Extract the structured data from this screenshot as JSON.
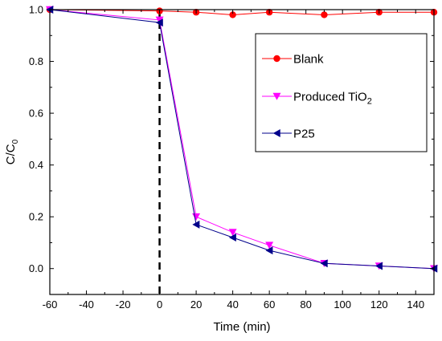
{
  "chart_data": {
    "type": "line",
    "xlabel": "Time (min)",
    "ylabel": {
      "main": "C/C",
      "sub": "0"
    },
    "xlim": [
      -60,
      150
    ],
    "ylim": [
      -0.1,
      1.0
    ],
    "xticks": [
      -60,
      -40,
      -20,
      0,
      20,
      40,
      60,
      80,
      100,
      120,
      140
    ],
    "yticks": [
      0.0,
      0.2,
      0.4,
      0.6,
      0.8,
      1.0
    ],
    "ytick_labels": [
      "0.0",
      "0.2",
      "0.4",
      "0.6",
      "0.8",
      "1.0"
    ],
    "grid": false,
    "legend_position": "top-right",
    "reference_line": {
      "x": 0,
      "style": "dashed",
      "color": "#000000"
    },
    "series": [
      {
        "name": "Blank",
        "label_parts": [
          {
            "text": "Blank"
          }
        ],
        "marker": "circle",
        "color": "#ff0000",
        "x": [
          -60,
          0,
          20,
          40,
          60,
          90,
          120,
          150
        ],
        "y": [
          1.0,
          0.995,
          0.99,
          0.98,
          0.99,
          0.98,
          0.99,
          0.99
        ]
      },
      {
        "name": "Produced TiO2",
        "label_parts": [
          {
            "text": "Produced TiO"
          },
          {
            "text": "2",
            "sub": true
          }
        ],
        "marker": "triangle-down",
        "color": "#ff00ff",
        "x": [
          -60,
          0,
          20,
          40,
          60,
          90,
          120,
          150
        ],
        "y": [
          1.0,
          0.96,
          0.2,
          0.14,
          0.09,
          0.02,
          0.01,
          0.0
        ]
      },
      {
        "name": "P25",
        "label_parts": [
          {
            "text": "P25"
          }
        ],
        "marker": "triangle-left",
        "color": "#00008b",
        "x": [
          -60,
          0,
          20,
          40,
          60,
          90,
          120,
          150
        ],
        "y": [
          1.0,
          0.95,
          0.17,
          0.12,
          0.07,
          0.02,
          0.01,
          0.0
        ]
      }
    ]
  }
}
